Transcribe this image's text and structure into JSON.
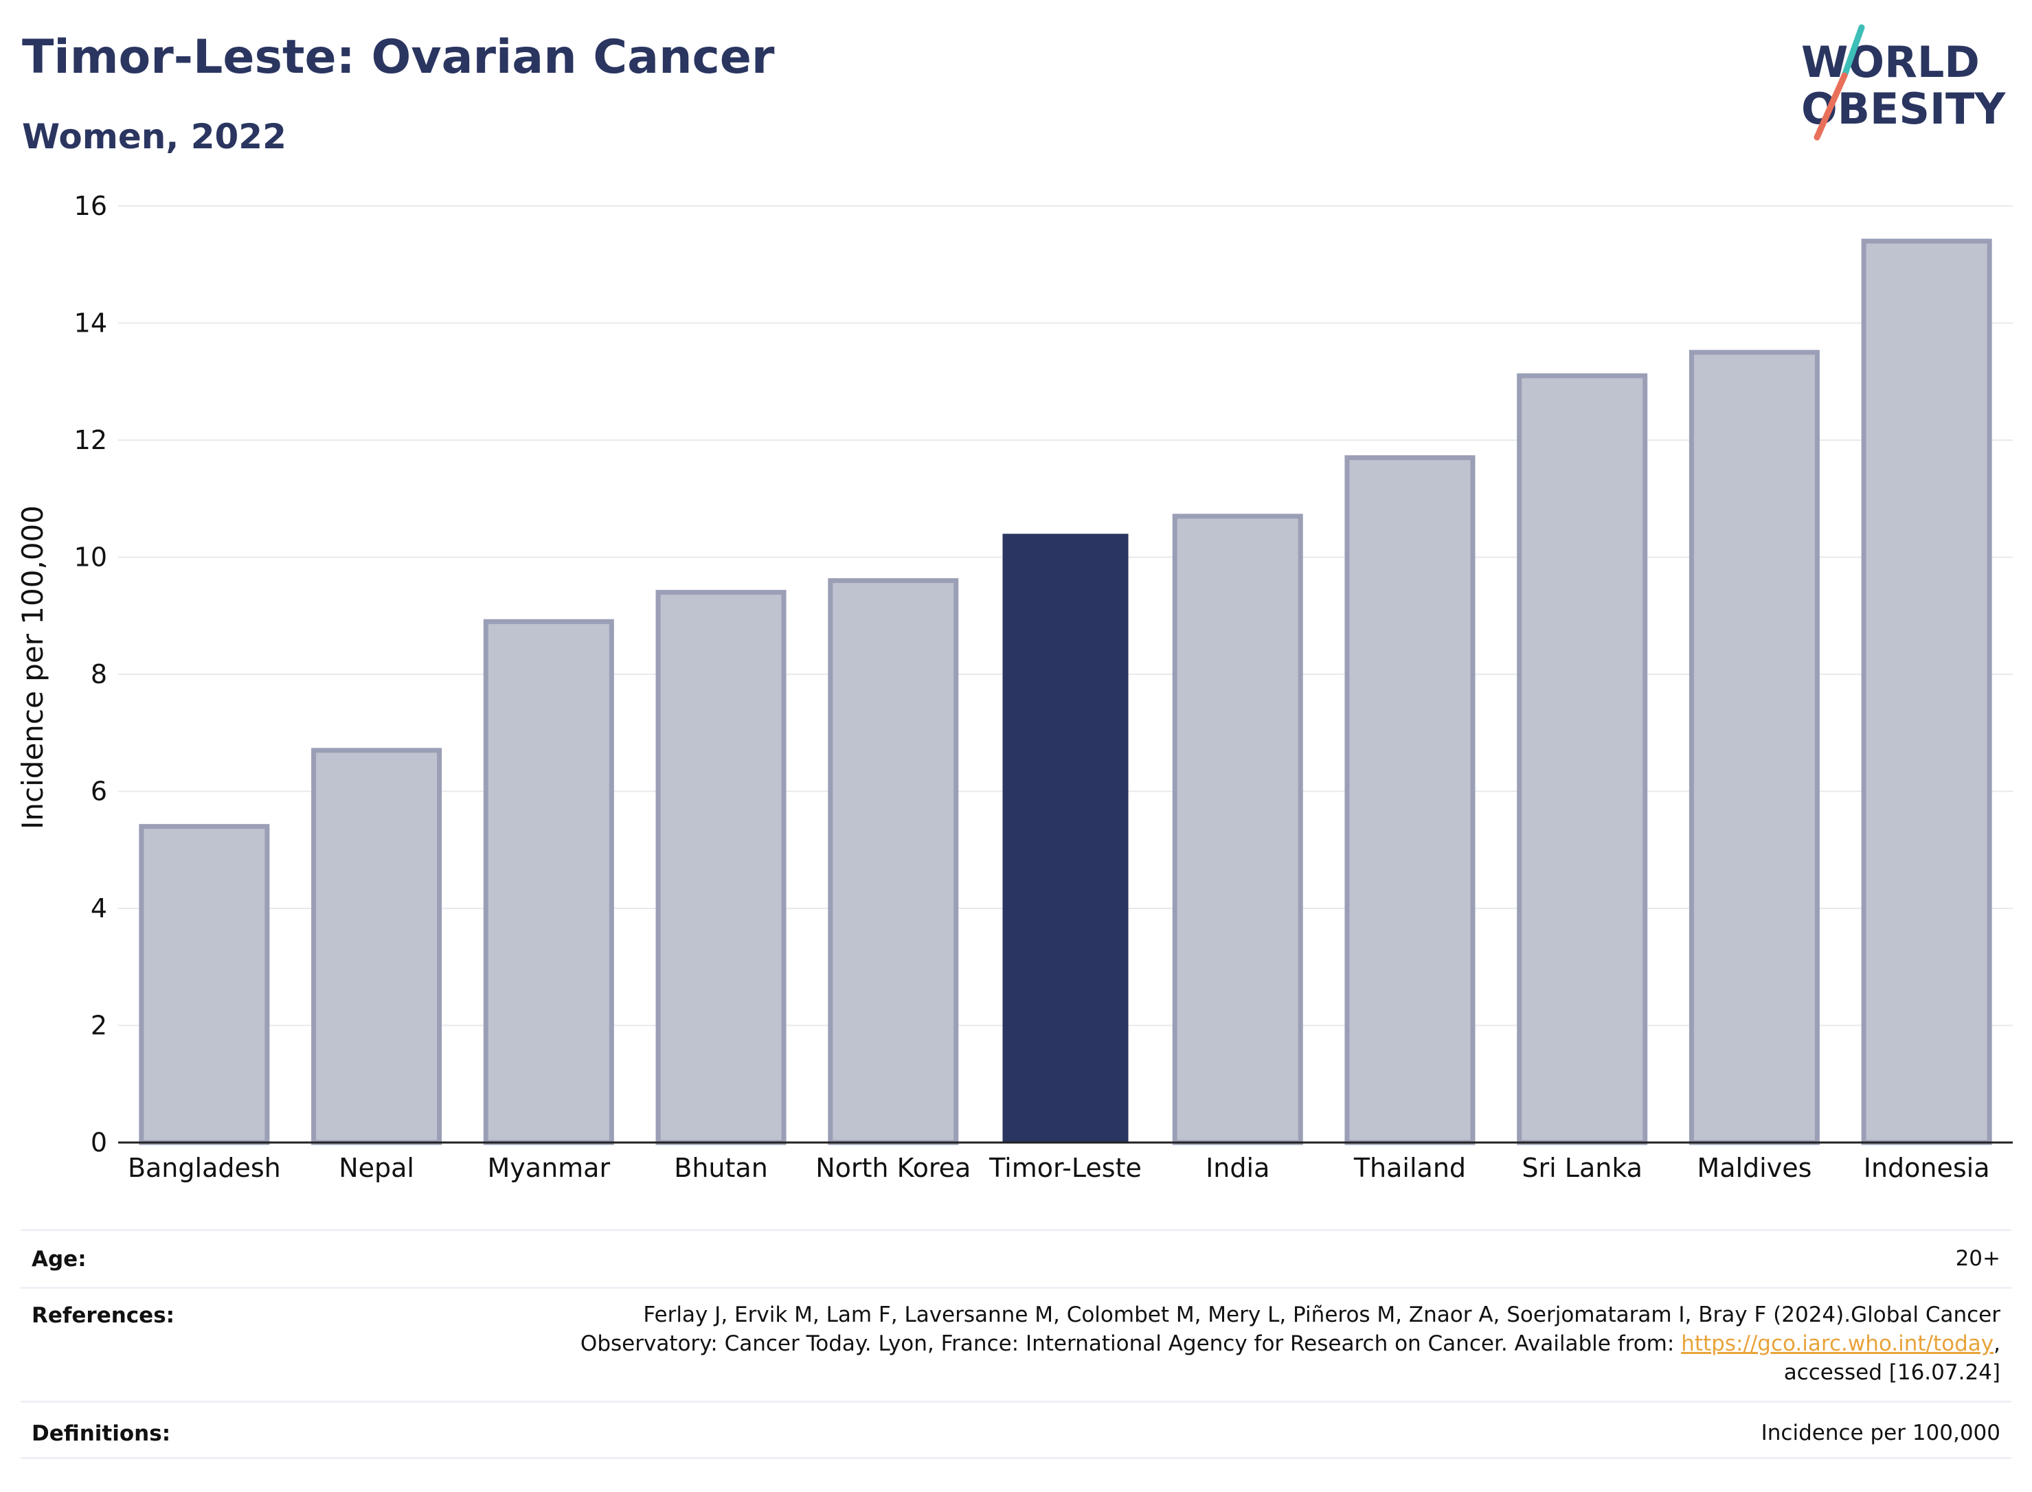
{
  "header": {
    "title": "Timor-Leste: Ovarian Cancer",
    "subtitle": "Women, 2022"
  },
  "logo": {
    "line1": "WORLD",
    "line2": "OBESITY",
    "text_color": "#2a3560",
    "slash_colors": [
      "#3dbfb8",
      "#e8705a"
    ]
  },
  "chart_data": {
    "type": "bar",
    "categories": [
      "Bangladesh",
      "Nepal",
      "Myanmar",
      "Bhutan",
      "North Korea",
      "Timor-Leste",
      "India",
      "Thailand",
      "Sri Lanka",
      "Maldives",
      "Indonesia"
    ],
    "values": [
      5.4,
      6.7,
      8.9,
      9.4,
      9.6,
      10.4,
      10.7,
      11.7,
      13.1,
      13.5,
      15.4
    ],
    "highlight": "Timor-Leste",
    "title": "Timor-Leste: Ovarian Cancer",
    "subtitle": "Women, 2022",
    "xlabel": "",
    "ylabel": "Incidence per 100,000",
    "ylim": [
      0,
      16
    ],
    "yticks": [
      0,
      2,
      4,
      6,
      8,
      10,
      12,
      14,
      16
    ],
    "grid": true,
    "colors": {
      "bar": "#bfc2cf",
      "bar_outline": "#9a9fb6",
      "highlight": "#2a3561",
      "grid": "#e8e9ee",
      "axis": "#222222"
    }
  },
  "info": {
    "age_label": "Age:",
    "age_value": "20+",
    "references_label": "References:",
    "references_line1": "Ferlay J, Ervik M, Lam F, Laversanne M, Colombet M, Mery L, Piñeros M, Znaor A, Soerjomataram I, Bray F (2024).Global Cancer",
    "references_line2_prefix": "Observatory: Cancer Today. Lyon, France: International Agency for Research on Cancer. Available from: ",
    "references_link": "https://gco.iarc.who.int/today",
    "references_line2_suffix": ",",
    "references_line3": "accessed [16.07.24]",
    "definitions_label": "Definitions:",
    "definitions_value": "Incidence per 100,000"
  }
}
